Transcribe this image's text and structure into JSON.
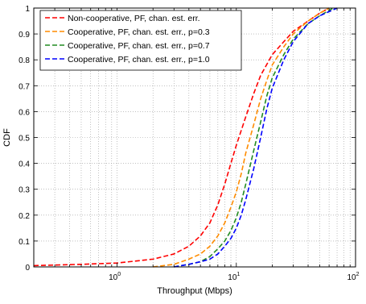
{
  "chart_data": {
    "type": "line",
    "xlabel": "Throughput (Mbps)",
    "ylabel": "CDF",
    "xscale": "log",
    "xlim": [
      0.2,
      100
    ],
    "ylim": [
      0,
      1
    ],
    "grid": true,
    "legend_position": "top-left",
    "x_ticks": [
      {
        "value": 1,
        "base": "10",
        "exp": "0"
      },
      {
        "value": 10,
        "base": "10",
        "exp": "1"
      },
      {
        "value": 100,
        "base": "10",
        "exp": "2"
      }
    ],
    "y_ticks": [
      {
        "value": 0,
        "label": "0"
      },
      {
        "value": 0.1,
        "label": "0.1"
      },
      {
        "value": 0.2,
        "label": "0.2"
      },
      {
        "value": 0.3,
        "label": "0.3"
      },
      {
        "value": 0.4,
        "label": "0.4"
      },
      {
        "value": 0.5,
        "label": "0.5"
      },
      {
        "value": 0.6,
        "label": "0.6"
      },
      {
        "value": 0.7,
        "label": "0.7"
      },
      {
        "value": 0.8,
        "label": "0.8"
      },
      {
        "value": 0.9,
        "label": "0.9"
      },
      {
        "value": 1,
        "label": "1"
      }
    ],
    "series": [
      {
        "name": "Non-cooperative, PF, chan. est. err.",
        "color": "#ff0000",
        "points": [
          [
            0.2,
            0.005
          ],
          [
            0.5,
            0.01
          ],
          [
            1.0,
            0.015
          ],
          [
            2.0,
            0.03
          ],
          [
            3.0,
            0.05
          ],
          [
            4.0,
            0.08
          ],
          [
            5.0,
            0.12
          ],
          [
            6.0,
            0.17
          ],
          [
            7.0,
            0.24
          ],
          [
            8.0,
            0.32
          ],
          [
            9.0,
            0.4
          ],
          [
            10.0,
            0.47
          ],
          [
            12.0,
            0.58
          ],
          [
            14.0,
            0.67
          ],
          [
            16.0,
            0.74
          ],
          [
            20.0,
            0.82
          ],
          [
            25.0,
            0.87
          ],
          [
            30.0,
            0.91
          ],
          [
            40.0,
            0.95
          ],
          [
            50.0,
            0.98
          ],
          [
            60.0,
            1.0
          ]
        ]
      },
      {
        "name": "Cooperative, PF, chan. est. err., p=0.3",
        "color": "#ff8c00",
        "points": [
          [
            2.0,
            0.0
          ],
          [
            3.0,
            0.01
          ],
          [
            4.0,
            0.03
          ],
          [
            5.0,
            0.05
          ],
          [
            6.0,
            0.08
          ],
          [
            7.0,
            0.12
          ],
          [
            8.0,
            0.17
          ],
          [
            9.0,
            0.23
          ],
          [
            10.0,
            0.29
          ],
          [
            11.0,
            0.36
          ],
          [
            12.0,
            0.44
          ],
          [
            14.0,
            0.55
          ],
          [
            16.0,
            0.65
          ],
          [
            18.0,
            0.72
          ],
          [
            20.0,
            0.78
          ],
          [
            25.0,
            0.85
          ],
          [
            30.0,
            0.9
          ],
          [
            40.0,
            0.95
          ],
          [
            50.0,
            0.98
          ],
          [
            60.0,
            1.0
          ]
        ]
      },
      {
        "name": "Cooperative, PF, chan. est. err., p=0.7",
        "color": "#228b22",
        "points": [
          [
            3.0,
            0.0
          ],
          [
            4.0,
            0.01
          ],
          [
            5.0,
            0.02
          ],
          [
            6.0,
            0.04
          ],
          [
            7.0,
            0.07
          ],
          [
            8.0,
            0.1
          ],
          [
            9.0,
            0.14
          ],
          [
            10.0,
            0.19
          ],
          [
            11.0,
            0.25
          ],
          [
            12.0,
            0.32
          ],
          [
            14.0,
            0.45
          ],
          [
            16.0,
            0.56
          ],
          [
            18.0,
            0.66
          ],
          [
            20.0,
            0.73
          ],
          [
            25.0,
            0.82
          ],
          [
            30.0,
            0.88
          ],
          [
            40.0,
            0.94
          ],
          [
            50.0,
            0.97
          ],
          [
            65.0,
            1.0
          ]
        ]
      },
      {
        "name": "Cooperative, PF, chan. est. err., p=1.0",
        "color": "#0000ff",
        "points": [
          [
            3.0,
            0.0
          ],
          [
            4.0,
            0.01
          ],
          [
            5.0,
            0.02
          ],
          [
            6.0,
            0.03
          ],
          [
            7.0,
            0.05
          ],
          [
            8.0,
            0.08
          ],
          [
            9.0,
            0.11
          ],
          [
            10.0,
            0.15
          ],
          [
            11.0,
            0.2
          ],
          [
            12.0,
            0.26
          ],
          [
            14.0,
            0.38
          ],
          [
            16.0,
            0.5
          ],
          [
            18.0,
            0.61
          ],
          [
            20.0,
            0.69
          ],
          [
            25.0,
            0.8
          ],
          [
            30.0,
            0.87
          ],
          [
            40.0,
            0.94
          ],
          [
            50.0,
            0.97
          ],
          [
            70.0,
            1.0
          ]
        ]
      }
    ]
  }
}
